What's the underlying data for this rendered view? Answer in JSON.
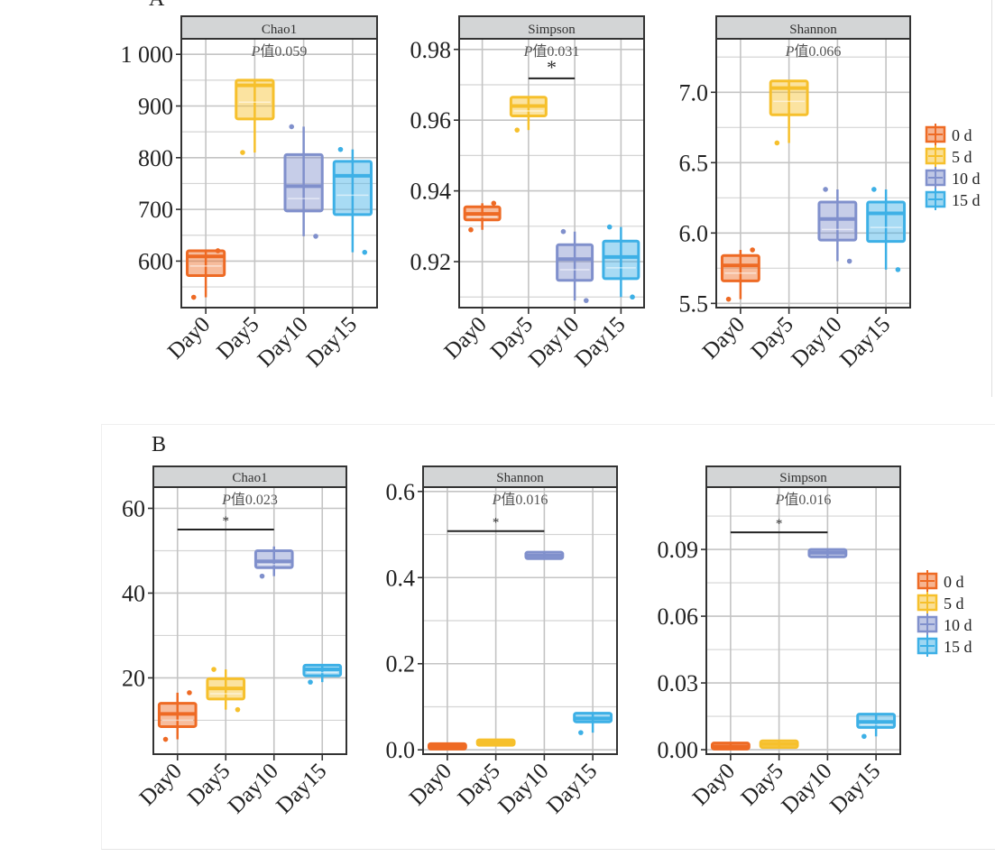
{
  "figure": {
    "panel_labels": [
      "A",
      "B"
    ],
    "groups": [
      "Day0",
      "Day5",
      "Day10",
      "Day15"
    ],
    "legend": [
      {
        "label": "0 d",
        "color": "#ee6a24"
      },
      {
        "label": "5 d",
        "color": "#f6c02c"
      },
      {
        "label": "10 d",
        "color": "#8090cc"
      },
      {
        "label": "15 d",
        "color": "#3db0e6"
      }
    ],
    "p_prefix_italic": "P",
    "p_prefix_cjk": "值",
    "significance_mark": "*"
  },
  "chart_data": [
    {
      "type": "box",
      "panel": "A",
      "title": "Chao1",
      "p_value": "0.059",
      "ylim": [
        510,
        1030
      ],
      "yticks": [
        600,
        700,
        800,
        900,
        1000
      ],
      "ytick_labels": [
        "600",
        "700",
        "800",
        "900",
        "1 000"
      ],
      "categories": [
        "Day0",
        "Day5",
        "Day10",
        "Day15"
      ],
      "boxes": [
        {
          "q1": 572,
          "median": 609,
          "q3": 620,
          "whisker_low": 530,
          "whisker_high": 620,
          "points": [
            530,
            620
          ]
        },
        {
          "q1": 875,
          "median": 940,
          "q3": 950,
          "whisker_low": 810,
          "whisker_high": 950,
          "points": [
            810
          ]
        },
        {
          "q1": 697,
          "median": 745,
          "q3": 806,
          "whisker_low": 648,
          "whisker_high": 860,
          "points": [
            860,
            648
          ]
        },
        {
          "q1": 690,
          "median": 765,
          "q3": 793,
          "whisker_low": 617,
          "whisker_high": 816,
          "points": [
            816,
            617
          ]
        }
      ],
      "significance": null
    },
    {
      "type": "box",
      "panel": "A",
      "title": "Simpson",
      "p_value": "0.031",
      "ylim": [
        0.907,
        0.983
      ],
      "yticks": [
        0.92,
        0.94,
        0.96,
        0.98
      ],
      "ytick_labels": [
        "0.92",
        "0.94",
        "0.96",
        "0.98"
      ],
      "categories": [
        "Day0",
        "Day5",
        "Day10",
        "Day15"
      ],
      "boxes": [
        {
          "q1": 0.9318,
          "median": 0.9335,
          "q3": 0.9355,
          "whisker_low": 0.929,
          "whisker_high": 0.9365,
          "points": [
            0.929,
            0.9365
          ]
        },
        {
          "q1": 0.9612,
          "median": 0.964,
          "q3": 0.9665,
          "whisker_low": 0.9572,
          "whisker_high": 0.9665,
          "points": [
            0.9572
          ]
        },
        {
          "q1": 0.9147,
          "median": 0.9207,
          "q3": 0.9248,
          "whisker_low": 0.909,
          "whisker_high": 0.9285,
          "points": [
            0.9285,
            0.909
          ]
        },
        {
          "q1": 0.9152,
          "median": 0.9213,
          "q3": 0.9258,
          "whisker_low": 0.91,
          "whisker_high": 0.9298,
          "points": [
            0.9298,
            0.91
          ]
        }
      ],
      "significance": {
        "from": "Day5",
        "to": "Day10",
        "y": 0.9718,
        "label": "*"
      }
    },
    {
      "type": "box",
      "panel": "A",
      "title": "Shannon",
      "p_value": "0.066",
      "ylim": [
        5.47,
        7.38
      ],
      "yticks": [
        5.5,
        6.0,
        6.5,
        7.0
      ],
      "ytick_labels": [
        "5.5",
        "6.0",
        "6.5",
        "7.0"
      ],
      "categories": [
        "Day0",
        "Day5",
        "Day10",
        "Day15"
      ],
      "boxes": [
        {
          "q1": 5.66,
          "median": 5.77,
          "q3": 5.84,
          "whisker_low": 5.53,
          "whisker_high": 5.88,
          "points": [
            5.53,
            5.88
          ]
        },
        {
          "q1": 6.84,
          "median": 7.03,
          "q3": 7.08,
          "whisker_low": 6.64,
          "whisker_high": 7.08,
          "points": [
            6.64
          ]
        },
        {
          "q1": 5.95,
          "median": 6.1,
          "q3": 6.22,
          "whisker_low": 5.8,
          "whisker_high": 6.31,
          "points": [
            6.31,
            5.8
          ]
        },
        {
          "q1": 5.94,
          "median": 6.14,
          "q3": 6.22,
          "whisker_low": 5.74,
          "whisker_high": 6.31,
          "points": [
            6.31,
            5.74
          ]
        }
      ],
      "significance": null
    },
    {
      "type": "box",
      "panel": "B",
      "title": "Chao1",
      "p_value": "0.023",
      "ylim": [
        2,
        65
      ],
      "yticks": [
        20,
        40,
        60
      ],
      "ytick_labels": [
        "20",
        "40",
        "60"
      ],
      "categories": [
        "Day0",
        "Day5",
        "Day10",
        "Day15"
      ],
      "boxes": [
        {
          "q1": 8.5,
          "median": 11.5,
          "q3": 14,
          "whisker_low": 5.5,
          "whisker_high": 16.5,
          "points": [
            5.5,
            16.5
          ]
        },
        {
          "q1": 15,
          "median": 17.5,
          "q3": 19.8,
          "whisker_low": 12.5,
          "whisker_high": 22,
          "points": [
            22,
            12.5
          ]
        },
        {
          "q1": 46,
          "median": 47.5,
          "q3": 50,
          "whisker_low": 44,
          "whisker_high": 51,
          "points": [
            44
          ]
        },
        {
          "q1": 20.5,
          "median": 22,
          "q3": 23,
          "whisker_low": 19,
          "whisker_high": 23,
          "points": [
            19
          ]
        }
      ],
      "significance": {
        "from": "Day0",
        "to": "Day10",
        "y": 55,
        "label": "*"
      }
    },
    {
      "type": "box",
      "panel": "B",
      "title": "Shannon",
      "p_value": "0.016",
      "ylim": [
        -0.01,
        0.61
      ],
      "yticks": [
        0.0,
        0.2,
        0.4,
        0.6
      ],
      "ytick_labels": [
        "0.0",
        "0.2",
        "0.4",
        "0.6"
      ],
      "categories": [
        "Day0",
        "Day5",
        "Day10",
        "Day15"
      ],
      "boxes": [
        {
          "q1": 0.002,
          "median": 0.008,
          "q3": 0.014,
          "whisker_low": 0.002,
          "whisker_high": 0.014,
          "points": []
        },
        {
          "q1": 0.012,
          "median": 0.017,
          "q3": 0.022,
          "whisker_low": 0.012,
          "whisker_high": 0.022,
          "points": []
        },
        {
          "q1": 0.444,
          "median": 0.451,
          "q3": 0.459,
          "whisker_low": 0.442,
          "whisker_high": 0.46,
          "points": []
        },
        {
          "q1": 0.065,
          "median": 0.073,
          "q3": 0.085,
          "whisker_low": 0.04,
          "whisker_high": 0.085,
          "points": [
            0.04
          ]
        }
      ],
      "significance": {
        "from": "Day0",
        "to": "Day10",
        "y": 0.508,
        "label": "*"
      }
    },
    {
      "type": "box",
      "panel": "B",
      "title": "Simpson",
      "p_value": "0.016",
      "ylim": [
        -0.002,
        0.118
      ],
      "yticks": [
        0.0,
        0.03,
        0.06,
        0.09
      ],
      "ytick_labels": [
        "0.00",
        "0.03",
        "0.06",
        "0.09"
      ],
      "categories": [
        "Day0",
        "Day5",
        "Day10",
        "Day15"
      ],
      "boxes": [
        {
          "q1": 0.0003,
          "median": 0.0015,
          "q3": 0.003,
          "whisker_low": 0.0003,
          "whisker_high": 0.003,
          "points": []
        },
        {
          "q1": 0.001,
          "median": 0.0025,
          "q3": 0.004,
          "whisker_low": 0.001,
          "whisker_high": 0.004,
          "points": []
        },
        {
          "q1": 0.0867,
          "median": 0.0885,
          "q3": 0.09,
          "whisker_low": 0.086,
          "whisker_high": 0.09,
          "points": []
        },
        {
          "q1": 0.01,
          "median": 0.0125,
          "q3": 0.016,
          "whisker_low": 0.006,
          "whisker_high": 0.016,
          "points": [
            0.006
          ]
        }
      ],
      "significance": {
        "from": "Day0",
        "to": "Day10",
        "y": 0.0977,
        "label": "*"
      }
    }
  ]
}
